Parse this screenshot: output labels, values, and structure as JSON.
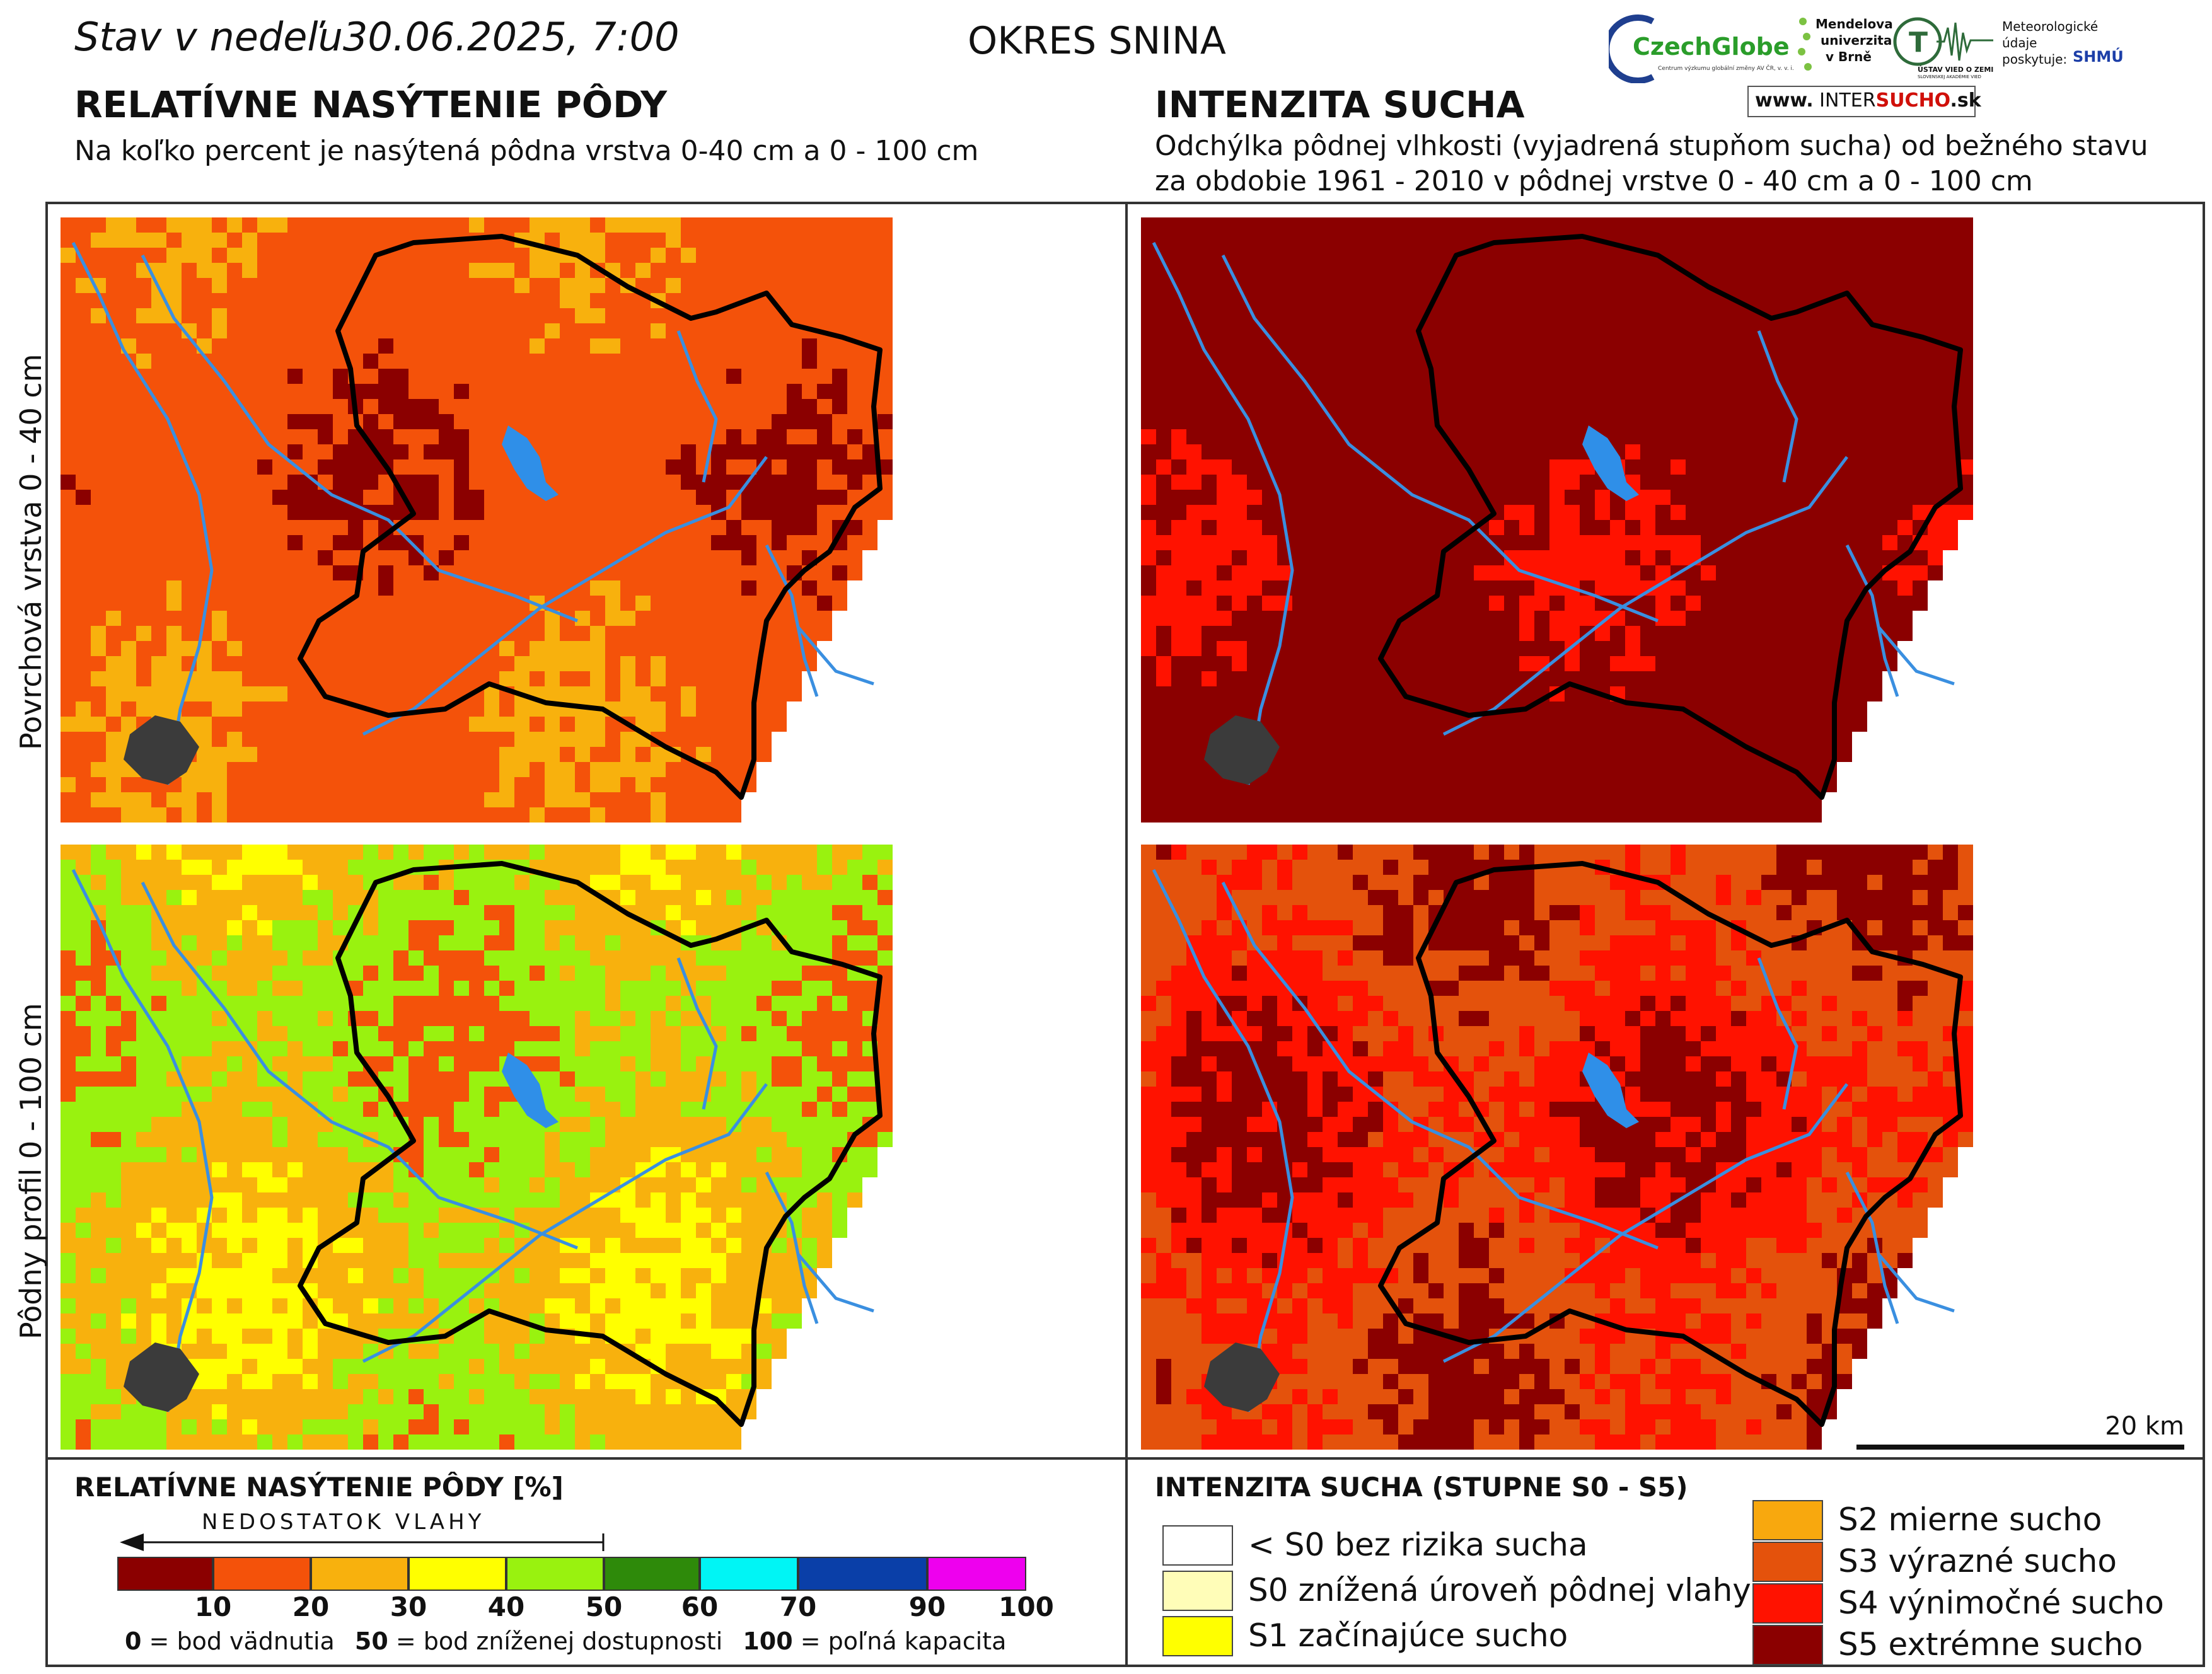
{
  "header": {
    "date_text": "Stav v nedeľu30.06.2025, 7:00",
    "district": "OKRES  SNINA"
  },
  "logos": {
    "czechglobe": "CzechGlobe",
    "czechglobe_sub": "Centrum výzkumu globální změny AV ČR, v. v. i.",
    "mendel": [
      "Mendelova",
      "univerzita",
      "v Brně"
    ],
    "ustav": "ÚSTAV VIED O ZEMI",
    "ustav_sub": "SLOVENSKEJ AKADÉMIE VIED",
    "meteo": [
      "Meteorologické",
      "údaje",
      "poskytuje:"
    ],
    "shmu": "SHMÚ",
    "intersucho_www": "www.",
    "intersucho_a": "INTER",
    "intersucho_b": "SUCHO",
    "intersucho_c": ".sk"
  },
  "left_section": {
    "title": "RELATÍVNE NASÝTENIE PÔDY",
    "subtitle": "Na koľko percent je nasýtená pôdna vrstva 0-40 cm a 0 - 100 cm"
  },
  "right_section": {
    "title": "INTENZITA SUCHA",
    "subtitle_line1": "Odchýlka pôdnej vlhkosti (vyjadrená stupňom sucha) od bežného stavu",
    "subtitle_line2": "za obdobie 1961 - 2010 v pôdnej vrstve 0 - 40 cm a 0 - 100 cm"
  },
  "row_labels": {
    "top": "Povrchová vrstva 0 - 40 cm",
    "bottom": "Pôdny profil 0 - 100 cm"
  },
  "scalebar": {
    "label": "20 km"
  },
  "legend_left": {
    "title": "RELATÍVNE NASÝTENIE PÔDY [%]",
    "arrow_label": "NEDOSTATOK VLAHY",
    "colors": [
      "#8b0000",
      "#f4520a",
      "#f8b10d",
      "#ffff00",
      "#99f20f",
      "#2e8a0a",
      "#00f5f5",
      "#0a3fa8",
      "#ee00ee"
    ],
    "ticks": [
      "10",
      "20",
      "30",
      "40",
      "50",
      "60",
      "70",
      "90",
      "100"
    ],
    "note_0_num": "0",
    "note_0_text": " = bod vädnutia",
    "note_50_num": "50",
    "note_50_text": " = bod zníženej dostupnosti",
    "note_100_num": "100",
    "note_100_text": " = poľná kapacita"
  },
  "legend_right": {
    "title": "INTENZITA SUCHA (STUPNE S0 - S5)",
    "classes": [
      {
        "label": "< S0 bez rizika sucha",
        "color": "#ffffff"
      },
      {
        "label": "S0 znížená úroveň pôdnej vlahy",
        "color": "#fffdb8"
      },
      {
        "label": "S1 začínajúce sucho",
        "color": "#ffff00"
      },
      {
        "label": "S2 mierne sucho",
        "color": "#f8a80e"
      },
      {
        "label": "S3 výrazné sucho",
        "color": "#e4520c"
      },
      {
        "label": "S4 výnimočné sucho",
        "color": "#ff1200"
      },
      {
        "label": "S5 extrémne sucho",
        "color": "#8b0000"
      }
    ]
  },
  "map_palettes": {
    "soil_top": [
      "#8b0000",
      "#f4520a",
      "#f4520a",
      "#f8b10d"
    ],
    "soil_bottom": [
      "#ffff00",
      "#f8b10d",
      "#99f20f",
      "#f4520a"
    ],
    "drought_top": [
      "#8b0000",
      "#8b0000",
      "#8b0000",
      "#ff1200"
    ],
    "drought_bottom": [
      "#8b0000",
      "#ff1200",
      "#e4520c",
      "#8b0000"
    ]
  }
}
